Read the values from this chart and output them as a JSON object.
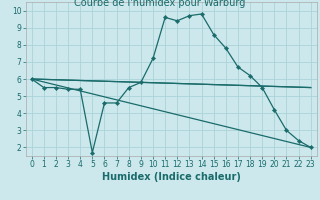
{
  "title": "Courbe de l'humidex pour Warburg",
  "xlabel": "Humidex (Indice chaleur)",
  "bg_color": "#cce8ec",
  "grid_color": "#aad4d8",
  "line_color": "#1a6b6b",
  "xlim": [
    -0.5,
    23.5
  ],
  "ylim": [
    1.5,
    10.5
  ],
  "xticks": [
    0,
    1,
    2,
    3,
    4,
    5,
    6,
    7,
    8,
    9,
    10,
    11,
    12,
    13,
    14,
    15,
    16,
    17,
    18,
    19,
    20,
    21,
    22,
    23
  ],
  "yticks": [
    2,
    3,
    4,
    5,
    6,
    7,
    8,
    9,
    10
  ],
  "series": [
    {
      "x": [
        0,
        1,
        2,
        3,
        4,
        5,
        6,
        7,
        8,
        9,
        10,
        11,
        12,
        13,
        14,
        15,
        16,
        17,
        18,
        19,
        20,
        21,
        22,
        23
      ],
      "y": [
        6.0,
        5.5,
        5.5,
        5.4,
        5.4,
        1.7,
        4.6,
        4.6,
        5.5,
        5.8,
        7.2,
        9.6,
        9.4,
        9.7,
        9.8,
        8.6,
        7.8,
        6.7,
        6.2,
        5.5,
        4.2,
        3.0,
        2.4,
        2.0
      ],
      "marker": true
    },
    {
      "x": [
        0,
        23
      ],
      "y": [
        6.0,
        2.0
      ],
      "marker": false
    },
    {
      "x": [
        0,
        23
      ],
      "y": [
        6.0,
        5.5
      ],
      "marker": false
    },
    {
      "x": [
        0,
        23
      ],
      "y": [
        6.0,
        5.5
      ],
      "marker": false
    }
  ],
  "title_fontsize": 7,
  "label_fontsize": 7,
  "tick_fontsize": 5.5
}
